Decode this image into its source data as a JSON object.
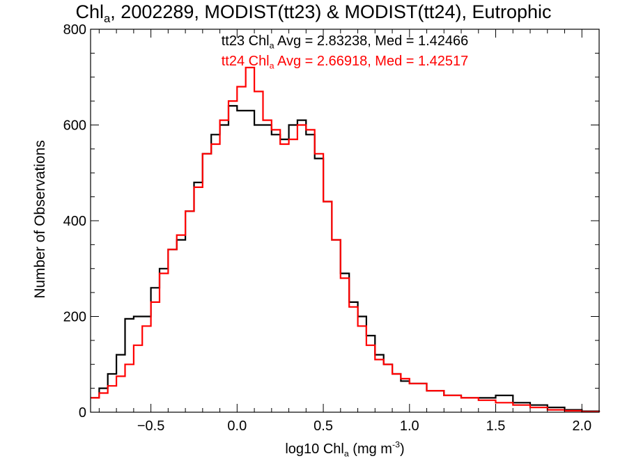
{
  "chart_data": {
    "type": "line",
    "style": "step-histogram",
    "title": {
      "main": "Chl",
      "sub": "a",
      "rest": ", 2002289, MODIST(tt23) & MODIST(tt24), Eutrophic"
    },
    "xlabel": {
      "main": "log10 Chl",
      "sub": "a",
      "mid": " (mg m",
      "sup": "-3",
      "end": ")"
    },
    "ylabel": "Number of Observations",
    "xlim": [
      -0.85,
      2.1
    ],
    "ylim": [
      0,
      800
    ],
    "xticks": [
      "-0.5",
      "0.0",
      "0.5",
      "1.0",
      "1.5",
      "2.0"
    ],
    "yticks": [
      "0",
      "200",
      "400",
      "600",
      "800"
    ],
    "legend": [
      {
        "series": "tt23",
        "pre": "tt23 Chl",
        "sub": "a",
        "post": " Avg = 2.83238, Med = 1.42466",
        "color": "#000000"
      },
      {
        "series": "tt24",
        "pre": "tt24 Chl",
        "sub": "a",
        "post": " Avg = 2.66918, Med = 1.42517",
        "color": "#ff0000"
      }
    ],
    "series": [
      {
        "name": "tt23",
        "color": "#000000",
        "x": [
          -0.85,
          -0.8,
          -0.75,
          -0.7,
          -0.65,
          -0.6,
          -0.55,
          -0.5,
          -0.45,
          -0.4,
          -0.35,
          -0.3,
          -0.25,
          -0.2,
          -0.15,
          -0.1,
          -0.05,
          0.0,
          0.05,
          0.1,
          0.15,
          0.2,
          0.25,
          0.3,
          0.35,
          0.4,
          0.45,
          0.5,
          0.55,
          0.6,
          0.65,
          0.7,
          0.75,
          0.8,
          0.85,
          0.9,
          0.95,
          1.0,
          1.1,
          1.2,
          1.3,
          1.4,
          1.5,
          1.6,
          1.7,
          1.8,
          1.9,
          2.0,
          2.1
        ],
        "y": [
          30,
          50,
          80,
          120,
          195,
          200,
          200,
          260,
          300,
          340,
          360,
          420,
          480,
          540,
          580,
          600,
          640,
          630,
          630,
          600,
          600,
          580,
          570,
          600,
          610,
          580,
          530,
          440,
          360,
          290,
          230,
          200,
          160,
          120,
          100,
          80,
          65,
          60,
          45,
          35,
          30,
          30,
          35,
          20,
          15,
          10,
          5,
          2,
          0
        ]
      },
      {
        "name": "tt24",
        "color": "#ff0000",
        "x": [
          -0.85,
          -0.8,
          -0.75,
          -0.7,
          -0.65,
          -0.6,
          -0.55,
          -0.5,
          -0.45,
          -0.4,
          -0.35,
          -0.3,
          -0.25,
          -0.2,
          -0.15,
          -0.1,
          -0.05,
          0.0,
          0.05,
          0.1,
          0.15,
          0.2,
          0.25,
          0.3,
          0.35,
          0.4,
          0.45,
          0.5,
          0.55,
          0.6,
          0.65,
          0.7,
          0.75,
          0.8,
          0.85,
          0.9,
          0.95,
          1.0,
          1.1,
          1.2,
          1.3,
          1.4,
          1.5,
          1.6,
          1.7,
          1.8,
          1.9,
          2.0,
          2.1
        ],
        "y": [
          30,
          40,
          55,
          75,
          100,
          140,
          180,
          230,
          290,
          340,
          370,
          420,
          470,
          540,
          560,
          610,
          650,
          680,
          720,
          670,
          610,
          590,
          560,
          570,
          600,
          590,
          540,
          440,
          360,
          280,
          220,
          180,
          140,
          110,
          100,
          80,
          70,
          60,
          45,
          35,
          30,
          25,
          20,
          15,
          10,
          5,
          3,
          1,
          0
        ]
      }
    ]
  }
}
